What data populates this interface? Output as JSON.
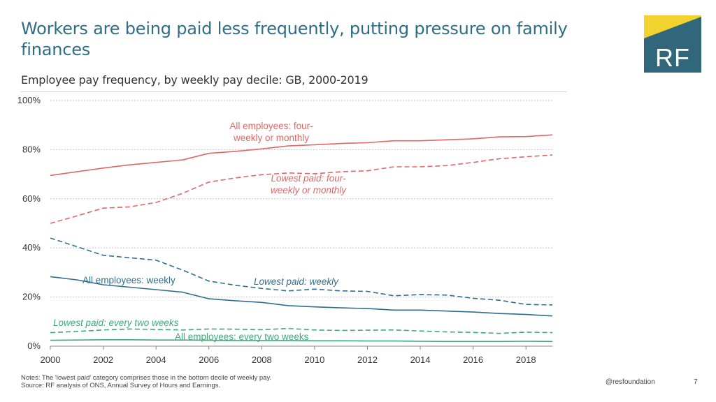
{
  "header": {
    "title": "Workers are being paid less frequently, putting pressure on family finances",
    "subtitle": "Employee pay frequency, by weekly pay decile: GB, 2000-2019"
  },
  "logo": {
    "text": "RF",
    "background": "#30677b",
    "accent": "#f2d22e"
  },
  "footer": {
    "notes_line1": "Notes: The 'lowest paid' category comprises those in the bottom decile of weekly pay.",
    "notes_line2": "Source: RF analysis of ONS, Annual Survey of Hours and Earnings.",
    "handle": "@resfoundation",
    "page_number": "7"
  },
  "chart_data": {
    "type": "line",
    "title": "Employee pay frequency, by weekly pay decile: GB, 2000-2019",
    "x": [
      2000,
      2001,
      2002,
      2003,
      2004,
      2005,
      2006,
      2007,
      2008,
      2009,
      2010,
      2011,
      2012,
      2013,
      2014,
      2015,
      2016,
      2017,
      2018,
      2019
    ],
    "xlim": [
      2000,
      2019
    ],
    "ylim": [
      0,
      100
    ],
    "x_ticks": [
      "2000",
      "2002",
      "2004",
      "2006",
      "2008",
      "2010",
      "2012",
      "2014",
      "2016",
      "2018"
    ],
    "y_ticks": [
      "0%",
      "20%",
      "40%",
      "60%",
      "80%",
      "100%"
    ],
    "grid": "horizontal dotted",
    "series": [
      {
        "name": "All employees: four-weekly or monthly",
        "label_lines": [
          "All employees: four-",
          "weekly or monthly"
        ],
        "color": "#e06766",
        "dash": false,
        "label_italic": false,
        "values": [
          69.5,
          71,
          72.5,
          73.8,
          74.8,
          75.8,
          78.5,
          79.3,
          80.3,
          81.5,
          82,
          82.5,
          82.8,
          83.6,
          83.6,
          84,
          84.4,
          85.2,
          85.3,
          86
        ]
      },
      {
        "name": "Lowest paid: four-weekly or monthly",
        "label_lines": [
          "Lowest paid: four-",
          "weekly or monthly"
        ],
        "color": "#e06766",
        "dash": true,
        "label_italic": true,
        "values": [
          50,
          53,
          56.2,
          56.7,
          58.5,
          62.2,
          66.8,
          68.5,
          69.8,
          70.5,
          70.2,
          71,
          71.4,
          73,
          73,
          73.5,
          74.8,
          76.3,
          77.1,
          77.8
        ]
      },
      {
        "name": "Lowest paid: weekly",
        "label_lines": [
          "Lowest paid: weekly"
        ],
        "color": "#2e6e8e",
        "dash": true,
        "label_italic": true,
        "values": [
          44,
          40.5,
          37,
          36,
          35,
          31,
          26.5,
          24.8,
          23.5,
          22.5,
          23.2,
          22.5,
          22.3,
          20.5,
          21,
          20.8,
          19.5,
          18.7,
          17,
          16.8
        ]
      },
      {
        "name": "All employees: weekly",
        "label_lines": [
          "All employees: weekly"
        ],
        "color": "#2e6e8e",
        "dash": false,
        "label_italic": false,
        "values": [
          28.3,
          27,
          25,
          24,
          23,
          22,
          19.3,
          18.5,
          17.8,
          16.5,
          16,
          15.6,
          15.3,
          14.7,
          14.7,
          14.3,
          13.9,
          13.3,
          12.9,
          12.3
        ]
      },
      {
        "name": "Lowest paid: every two weeks",
        "label_lines": [
          "Lowest paid: every two weeks"
        ],
        "color": "#3eaa7a",
        "dash": true,
        "label_italic": true,
        "values": [
          5.5,
          6,
          6.6,
          7,
          6.8,
          6.6,
          7,
          6.9,
          6.7,
          7.2,
          6.6,
          6.4,
          6.5,
          6.6,
          6.2,
          5.8,
          5.6,
          5.2,
          5.7,
          5.5
        ]
      },
      {
        "name": "All employees: every two weeks",
        "label_lines": [
          "All employees: every two weeks"
        ],
        "color": "#3eaa7a",
        "dash": false,
        "label_italic": false,
        "values": [
          2.4,
          2.5,
          2.6,
          2.6,
          2.5,
          2.5,
          2.4,
          2.3,
          2.3,
          2.3,
          2.2,
          2.2,
          2.1,
          2.1,
          2,
          1.9,
          1.9,
          1.9,
          2,
          1.9
        ]
      }
    ]
  }
}
